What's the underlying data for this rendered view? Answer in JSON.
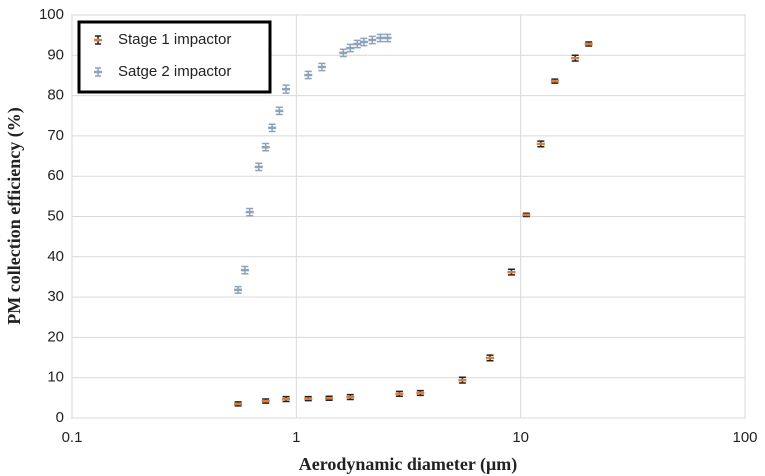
{
  "chart_data": {
    "type": "scatter",
    "x_label": "Aerodynamic diameter (μm)",
    "y_label": "PM collection efficiency (%)",
    "xlim": [
      0.1,
      100
    ],
    "xticks": [
      0.1,
      1,
      10,
      100
    ],
    "xscale": "log",
    "ylim": [
      0,
      100
    ],
    "yticks": [
      0,
      10,
      20,
      30,
      40,
      50,
      60,
      70,
      80,
      90,
      100
    ],
    "grid": true,
    "legend": "upper left",
    "series": [
      {
        "name": "Stage 1 impactor",
        "color": "#e07b39",
        "x": [
          0.55,
          0.73,
          0.9,
          1.13,
          1.4,
          1.74,
          2.88,
          3.57,
          5.5,
          7.3,
          9.1,
          10.6,
          12.3,
          14.2,
          17.5,
          20.1
        ],
        "values": [
          3.5,
          4.2,
          4.7,
          4.8,
          4.9,
          5.2,
          6.0,
          6.2,
          9.4,
          14.9,
          36.2,
          50.4,
          68,
          83.6,
          89.3,
          92.8
        ],
        "errors": [
          0.5,
          0.5,
          0.6,
          0.5,
          0.5,
          0.6,
          0.6,
          0.6,
          0.7,
          0.7,
          0.7,
          0.4,
          0.7,
          0.5,
          0.7,
          0.5
        ]
      },
      {
        "name": "Satge 2 impactor",
        "color": "#8fa3b8",
        "x": [
          0.55,
          0.59,
          0.62,
          0.68,
          0.73,
          0.78,
          0.84,
          0.9,
          1.13,
          1.3,
          1.62,
          1.74,
          1.87,
          2.0,
          2.18,
          2.37,
          2.55
        ],
        "values": [
          31.8,
          36.7,
          51.1,
          62.3,
          67.2,
          72,
          76.2,
          81.6,
          85.1,
          87.1,
          90.6,
          91.8,
          92.8,
          93.3,
          93.8,
          94.3,
          94.3
        ],
        "errors": [
          0.8,
          0.9,
          0.9,
          0.9,
          0.9,
          0.9,
          0.9,
          1.0,
          0.9,
          0.9,
          0.9,
          0.9,
          0.9,
          0.9,
          0.9,
          0.9,
          0.9
        ]
      }
    ]
  }
}
